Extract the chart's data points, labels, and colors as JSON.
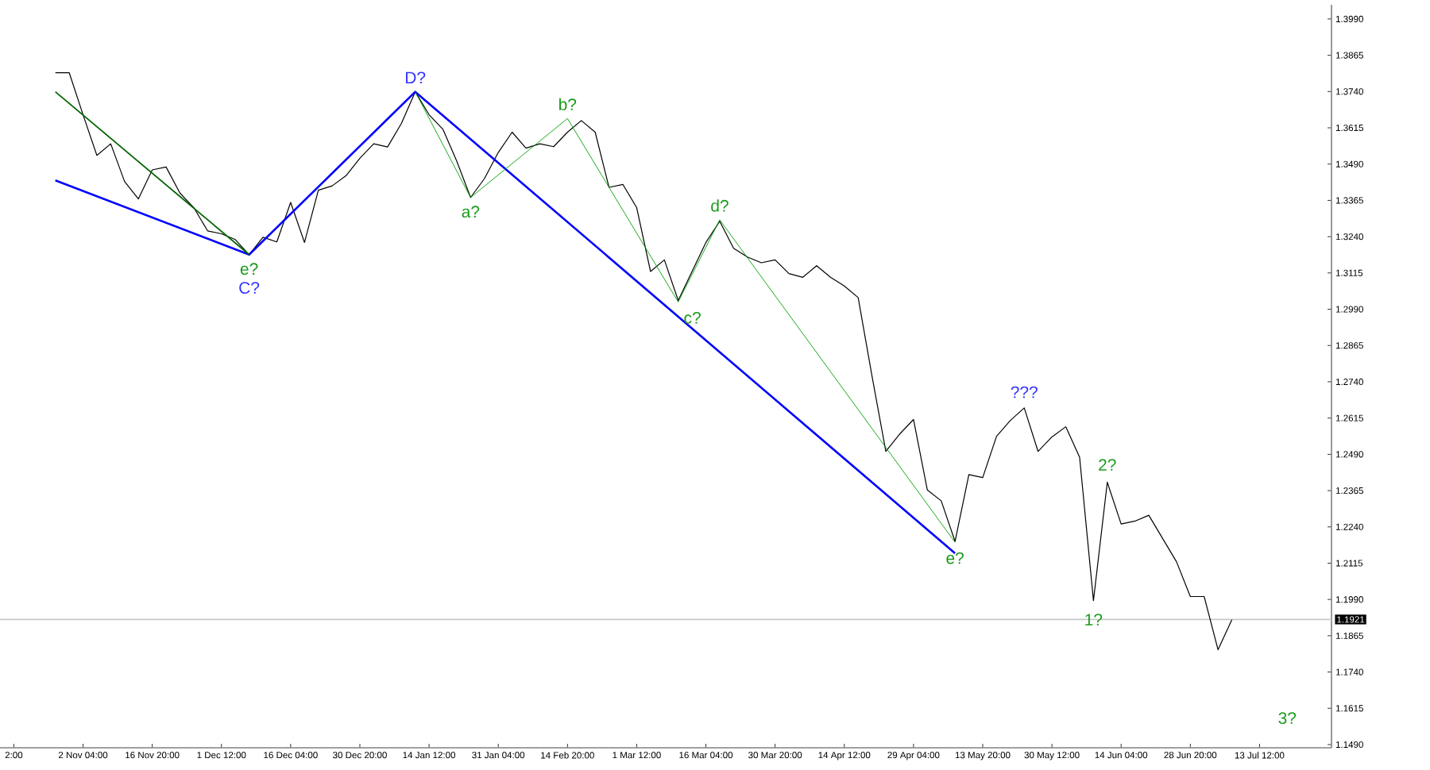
{
  "chart_data": {
    "type": "line",
    "grid": false,
    "marker": "none",
    "line_style": "solid",
    "ylim": [
      1.1479,
      1.4039
    ],
    "categories": [
      "2:00",
      null,
      null,
      null,
      null,
      "2 Nov 04:00",
      null,
      null,
      null,
      null,
      "16 Nov 20:00",
      null,
      null,
      null,
      null,
      "1 Dec 12:00",
      null,
      null,
      null,
      null,
      "16 Dec 04:00",
      null,
      null,
      null,
      null,
      "30 Dec 20:00",
      null,
      null,
      null,
      null,
      "14 Jan 12:00",
      null,
      null,
      null,
      null,
      "31 Jan 04:00",
      null,
      null,
      null,
      null,
      "14 Feb 20:00",
      null,
      null,
      null,
      null,
      "1 Mar 12:00",
      null,
      null,
      null,
      null,
      "16 Mar 04:00",
      null,
      null,
      null,
      null,
      "30 Mar 20:00",
      null,
      null,
      null,
      null,
      "14 Apr 12:00",
      null,
      null,
      null,
      null,
      "29 Apr 04:00",
      null,
      null,
      null,
      null,
      "13 May 20:00",
      null,
      null,
      null,
      null,
      "30 May 12:00",
      null,
      null,
      null,
      null,
      "14 Jun 04:00",
      null,
      null,
      null,
      null,
      "28 Jun 20:00",
      null,
      null,
      null,
      null,
      "13 Jul 12:00",
      null,
      null,
      null,
      null
    ],
    "yticks": [
      {
        "value": 1.399,
        "label": "1.3990"
      },
      {
        "value": 1.3865,
        "label": "1.3865"
      },
      {
        "value": 1.374,
        "label": "1.3740"
      },
      {
        "value": 1.3615,
        "label": "1.3615"
      },
      {
        "value": 1.349,
        "label": "1.3490"
      },
      {
        "value": 1.3365,
        "label": "1.3365"
      },
      {
        "value": 1.324,
        "label": "1.3240"
      },
      {
        "value": 1.3115,
        "label": "1.3115"
      },
      {
        "value": 1.299,
        "label": "1.2990"
      },
      {
        "value": 1.2865,
        "label": "1.2865"
      },
      {
        "value": 1.274,
        "label": "1.2740"
      },
      {
        "value": 1.2615,
        "label": "1.2615"
      },
      {
        "value": 1.249,
        "label": "1.2490"
      },
      {
        "value": 1.2365,
        "label": "1.2365"
      },
      {
        "value": 1.224,
        "label": "1.2240"
      },
      {
        "value": 1.2115,
        "label": "1.2115"
      },
      {
        "value": 1.199,
        "label": "1.1990"
      },
      {
        "value": 1.1865,
        "label": "1.1865"
      },
      {
        "value": 1.174,
        "label": "1.1740"
      },
      {
        "value": 1.1615,
        "label": "1.1615"
      },
      {
        "value": 1.149,
        "label": "1.1490"
      }
    ],
    "series": [
      {
        "color": "#000000",
        "values": [
          null,
          null,
          null,
          1.3805,
          1.3805,
          1.366,
          1.352,
          1.356,
          1.343,
          1.337,
          1.347,
          1.348,
          1.339,
          1.334,
          1.326,
          1.325,
          1.323,
          1.3178,
          1.3238,
          1.3222,
          1.3358,
          1.322,
          1.34,
          1.3415,
          1.345,
          1.351,
          1.356,
          1.3549,
          1.363,
          1.3739,
          1.366,
          1.361,
          1.35,
          1.3375,
          1.344,
          1.353,
          1.36,
          1.3545,
          1.356,
          1.355,
          1.36,
          1.364,
          1.36,
          1.341,
          1.342,
          1.334,
          1.312,
          1.316,
          1.302,
          1.312,
          1.322,
          1.3293,
          1.32,
          1.317,
          1.315,
          1.316,
          1.3113,
          1.31,
          1.314,
          1.31,
          1.307,
          1.303,
          1.276,
          1.25,
          1.256,
          1.261,
          1.2367,
          1.233,
          1.219,
          1.242,
          1.241,
          1.2552,
          1.2607,
          1.265,
          1.25,
          1.255,
          1.2585,
          1.248,
          1.1986,
          1.2394,
          1.225,
          1.226,
          1.228,
          1.22,
          1.212,
          1.2,
          1.2,
          1.1817,
          1.192,
          null,
          null,
          null,
          null,
          null,
          null
        ]
      },
      {
        "color": "#0000ff",
        "values": [
          null,
          null,
          null,
          1.3434,
          null,
          null,
          null,
          null,
          null,
          null,
          null,
          null,
          null,
          null,
          null,
          null,
          null,
          1.3178,
          null,
          null,
          null,
          null,
          null,
          null,
          null,
          null,
          null,
          null,
          null,
          1.3739,
          null,
          null,
          null,
          null,
          null,
          null,
          null,
          null,
          null,
          null,
          null,
          null,
          null,
          null,
          null,
          null,
          null,
          null,
          null,
          null,
          null,
          null,
          null,
          null,
          null,
          null,
          null,
          null,
          null,
          null,
          null,
          null,
          null,
          null,
          null,
          null,
          null,
          null,
          1.2149,
          null,
          null,
          null,
          null,
          null,
          null,
          null,
          null,
          null,
          null,
          null,
          null,
          null,
          null,
          null,
          null,
          null,
          null,
          null,
          null,
          null,
          null,
          null,
          null,
          null,
          null
        ]
      },
      {
        "color": "#006400",
        "values": [
          null,
          null,
          null,
          1.3739,
          null,
          null,
          null,
          null,
          null,
          null,
          null,
          null,
          null,
          null,
          null,
          null,
          null,
          1.3178,
          null,
          null,
          null,
          null,
          null,
          null,
          null,
          null,
          null,
          null,
          null,
          null,
          null,
          null,
          null,
          null,
          null,
          null,
          null,
          null,
          null,
          null,
          null,
          null,
          null,
          null,
          null,
          null,
          null,
          null,
          null,
          null,
          null,
          null,
          null,
          null,
          null,
          null,
          null,
          null,
          null,
          null,
          null,
          null,
          null,
          null,
          null,
          null,
          null,
          null,
          null,
          null,
          null,
          null,
          null,
          null,
          null,
          null,
          null,
          null,
          null,
          null,
          null,
          null,
          null,
          null,
          null,
          null,
          null,
          null,
          null,
          null,
          null,
          null,
          null,
          null,
          null
        ]
      },
      {
        "color": "#00a000",
        "values": [
          null,
          null,
          null,
          null,
          null,
          null,
          null,
          null,
          null,
          null,
          null,
          null,
          null,
          null,
          null,
          null,
          null,
          null,
          null,
          null,
          null,
          null,
          null,
          null,
          null,
          null,
          null,
          null,
          null,
          1.3739,
          null,
          null,
          null,
          1.3375,
          null,
          null,
          null,
          null,
          null,
          null,
          1.3647,
          null,
          null,
          null,
          null,
          null,
          null,
          null,
          1.3015,
          null,
          null,
          1.3298,
          null,
          null,
          null,
          null,
          null,
          null,
          null,
          null,
          null,
          null,
          null,
          null,
          null,
          null,
          null,
          null,
          1.2187,
          null,
          null,
          null,
          null,
          null,
          null,
          null,
          null,
          null,
          null,
          null,
          null,
          null,
          null,
          null,
          null,
          null,
          null,
          null,
          null,
          null,
          null,
          null,
          null,
          null,
          null
        ]
      }
    ],
    "ref_lines": [
      {
        "axis": "y",
        "value": 1.1921,
        "label": "1.1921",
        "color": "#c8c8c8"
      }
    ],
    "annotations": [
      "D?",
      "e?",
      "C?",
      "a?",
      "b?",
      "c?",
      "d?",
      "e?",
      "???",
      "1?",
      "2?",
      "3?"
    ]
  }
}
